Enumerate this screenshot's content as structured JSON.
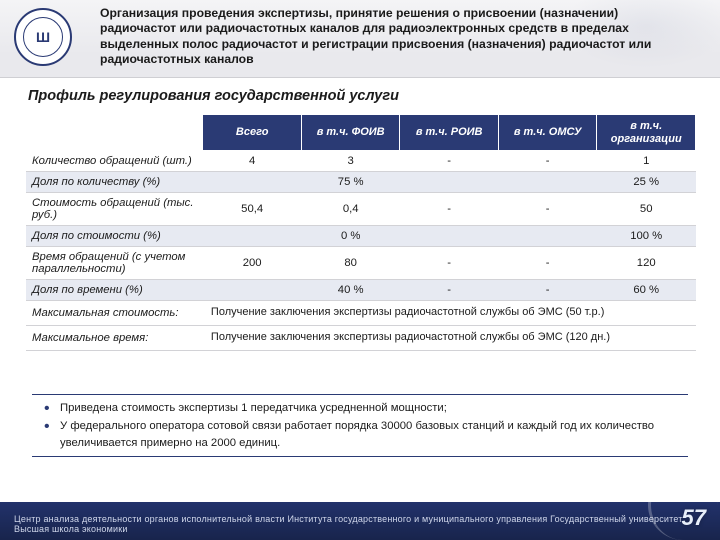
{
  "header": {
    "title": "Организация проведения экспертизы, принятие решения о присвоении (назначении) радиочастот или радиочастотных каналов для радиоэлектронных средств в пределах выделенных полос радиочастот и регистрации присвоения (назначения) радиочастот или радиочастотных каналов"
  },
  "subtitle": "Профиль регулирования государственной услуги",
  "table": {
    "columns": [
      "Всего",
      "в т.ч. ФОИВ",
      "в т.ч. РОИВ",
      "в т.ч. ОМСУ",
      "в т.ч. организации"
    ],
    "rows": [
      {
        "label": "Количество обращений (шт.)",
        "cells": [
          "4",
          "3",
          "-",
          "-",
          "1"
        ],
        "band": false
      },
      {
        "label": "Доля по количеству (%)",
        "cells": [
          "",
          "75 %",
          "",
          "",
          "25 %"
        ],
        "band": true
      },
      {
        "label": "Стоимость обращений (тыс. руб.)",
        "cells": [
          "50,4",
          "0,4",
          "-",
          "-",
          "50"
        ],
        "band": false
      },
      {
        "label": "Доля по стоимости (%)",
        "cells": [
          "",
          "0 %",
          "",
          "",
          "100 %"
        ],
        "band": true
      },
      {
        "label": "Время обращений (с учетом параллельности)",
        "cells": [
          "200",
          "80",
          "-",
          "-",
          "120"
        ],
        "band": false
      },
      {
        "label": "Доля по времени (%)",
        "cells": [
          "",
          "40 %",
          "-",
          "-",
          "60 %"
        ],
        "band": true
      }
    ],
    "merge_rows": [
      {
        "label": "Максимальная стоимость:",
        "text": "Получение заключения экспертизы радиочастотной службы об ЭМС (50 т.р.)"
      },
      {
        "label": "Максимальное время:",
        "text": "Получение заключения экспертизы радиочастотной службы об ЭМС (120 дн.)"
      }
    ]
  },
  "bullets": [
    "Приведена стоимость экспертизы 1 передатчика усредненной мощности;",
    "У федерального оператора сотовой связи работает порядка 30000 базовых станций и каждый год их количество увеличивается примерно на 2000 единиц."
  ],
  "footer": {
    "text": "Центр анализа деятельности органов исполнительной власти Института государственного и муниципального управления   Государственный университет   Высшая школа экономики",
    "page": "57"
  },
  "logo_text": "Ш"
}
